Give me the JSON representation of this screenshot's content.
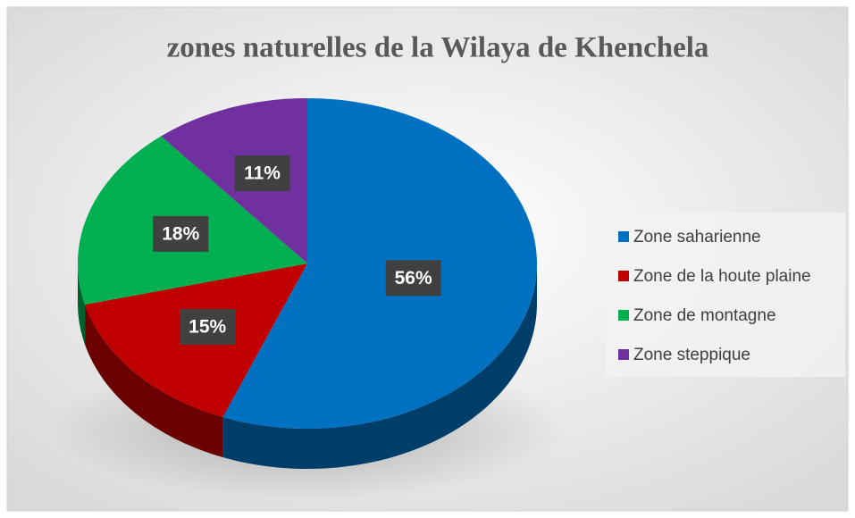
{
  "chart_data": {
    "type": "pie",
    "title": "zones naturelles de la Wilaya de Khenchela",
    "categories": [
      "Zone saharienne",
      "Zone de la houte plaine",
      "Zone de montagne",
      "Zone steppique"
    ],
    "values": [
      56,
      15,
      18,
      11
    ],
    "value_labels": [
      "56%",
      "15%",
      "18%",
      "11%"
    ],
    "colors": [
      "#0070c0",
      "#c00000",
      "#00b050",
      "#7030a0"
    ],
    "legend": "right"
  }
}
